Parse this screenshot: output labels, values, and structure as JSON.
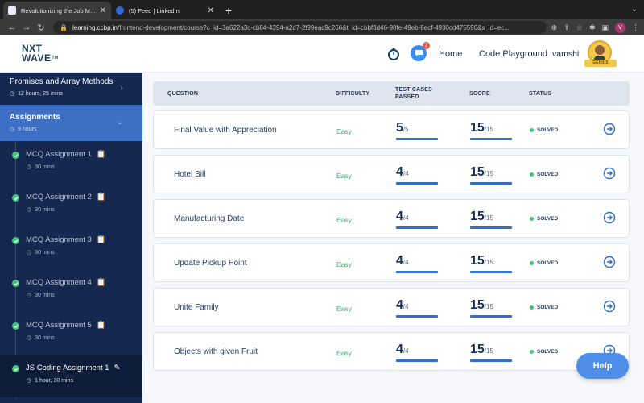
{
  "browser": {
    "tabs": [
      {
        "title": "Revolutionizing the Job Market",
        "active": true
      },
      {
        "title": "(5) Feed | LinkedIn",
        "active": false
      }
    ],
    "url_host": "learning.ccbp.in",
    "url_path": "/frontend-development/course?c_id=3a622a3c-cb84-4394-a2d7-2f99eac9c266&t_id=cbbf3d46-98fe-49eb-8ecf-4930cd475590&s_id=ec...",
    "profile_initial": "V"
  },
  "header": {
    "logo_line1": "NXT",
    "logo_line2": "WAVE",
    "logo_tm": "TM",
    "notification_count": "2",
    "nav": [
      "Home",
      "Code Playground"
    ],
    "username": "vamshi",
    "avatar_badge": "GENIUS"
  },
  "sidebar": {
    "promises": {
      "title": "Promises and Array Methods",
      "duration": "12 hours, 25 mins"
    },
    "assignments": {
      "title": "Assignments",
      "duration": "9 hours"
    },
    "items": [
      {
        "name": "MCQ Assignment 1",
        "duration": "30 mins",
        "icon": "clipboard-icon"
      },
      {
        "name": "MCQ Assignment 2",
        "duration": "30 mins",
        "icon": "clipboard-icon"
      },
      {
        "name": "MCQ Assignment 3",
        "duration": "30 mins",
        "icon": "clipboard-icon"
      },
      {
        "name": "MCQ Assignment 4",
        "duration": "30 mins",
        "icon": "clipboard-icon"
      },
      {
        "name": "MCQ Assignment 5",
        "duration": "30 mins",
        "icon": "clipboard-icon"
      },
      {
        "name": "JS Coding Assignment 1",
        "duration": "1 hour, 30 mins",
        "icon": "pencil-icon"
      }
    ]
  },
  "table": {
    "headers": {
      "question": "QUESTION",
      "difficulty": "DIFFICULTY",
      "tests_1": "TEST CASES",
      "tests_2": "PASSED",
      "score": "SCORE",
      "status": "STATUS"
    },
    "rows": [
      {
        "question": "Final Value with Appreciation",
        "difficulty": "Easy",
        "tests_passed": "5",
        "tests_total": "/5",
        "score": "15",
        "score_total": "/15",
        "status": "SOLVED"
      },
      {
        "question": "Hotel Bill",
        "difficulty": "Easy",
        "tests_passed": "4",
        "tests_total": "/4",
        "score": "15",
        "score_total": "/15",
        "status": "SOLVED"
      },
      {
        "question": "Manufacturing Date",
        "difficulty": "Easy",
        "tests_passed": "4",
        "tests_total": "/4",
        "score": "15",
        "score_total": "/15",
        "status": "SOLVED"
      },
      {
        "question": "Update Pickup Point",
        "difficulty": "Easy",
        "tests_passed": "4",
        "tests_total": "/4",
        "score": "15",
        "score_total": "/15",
        "status": "SOLVED"
      },
      {
        "question": "Unite Family",
        "difficulty": "Easy",
        "tests_passed": "4",
        "tests_total": "/4",
        "score": "15",
        "score_total": "/15",
        "status": "SOLVED"
      },
      {
        "question": "Objects with given Fruit",
        "difficulty": "Easy",
        "tests_passed": "4",
        "tests_total": "/4",
        "score": "15",
        "score_total": "/15",
        "status": "SOLVED"
      }
    ]
  },
  "help_label": "Help",
  "colors": {
    "sidebar": "#152850",
    "active_section": "#3d6fc4",
    "easy": "#3cb371",
    "solved_dot": "#3fc57a",
    "accent": "#2f6fcf"
  }
}
